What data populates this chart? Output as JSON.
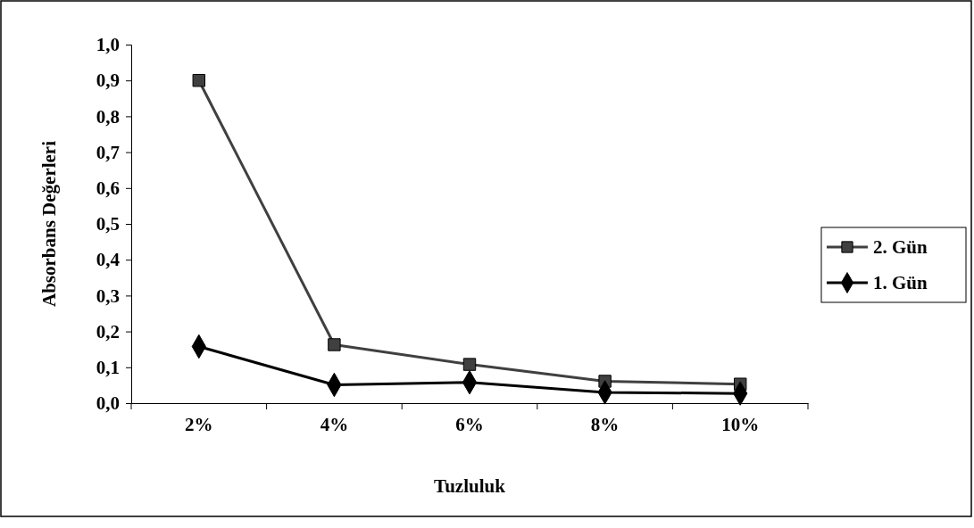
{
  "chart_data": {
    "type": "line",
    "xlabel": "Tuzluluk",
    "ylabel": "Absorbans Değerleri",
    "categories": [
      "2%",
      "4%",
      "6%",
      "8%",
      "10%"
    ],
    "series": [
      {
        "name": "2. Gün",
        "color": "#404040",
        "marker": "square",
        "values": [
          0.9,
          0.163,
          0.108,
          0.061,
          0.053
        ]
      },
      {
        "name": "1. Gün",
        "color": "#000000",
        "marker": "diamond",
        "values": [
          0.158,
          0.051,
          0.058,
          0.03,
          0.027
        ]
      }
    ],
    "ylim": [
      0,
      1
    ],
    "yticks": [
      {
        "value": 0,
        "label": "0,0"
      },
      {
        "value": 0.1,
        "label": "0,1"
      },
      {
        "value": 0.2,
        "label": "0,2"
      },
      {
        "value": 0.3,
        "label": "0,3"
      },
      {
        "value": 0.4,
        "label": "0,4"
      },
      {
        "value": 0.5,
        "label": "0,5"
      },
      {
        "value": 0.6,
        "label": "0,6"
      },
      {
        "value": 0.7,
        "label": "0,7"
      },
      {
        "value": 0.8,
        "label": "0,8"
      },
      {
        "value": 0.9,
        "label": "0,9"
      },
      {
        "value": 1,
        "label": "1,0"
      }
    ],
    "grid": false,
    "legend": "right"
  }
}
